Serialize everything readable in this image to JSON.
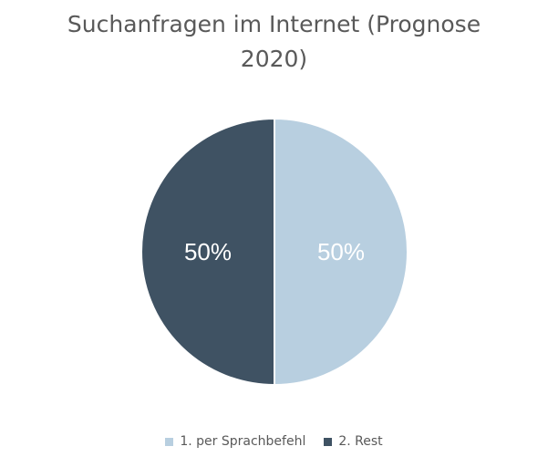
{
  "chart_data": {
    "type": "pie",
    "title_lines": [
      "Suchanfragen im Internet (Prognose",
      "2020)"
    ],
    "series": [
      {
        "name": "",
        "categories": [
          "1. per Sprachbefehl",
          "2. Rest"
        ],
        "values": [
          50,
          50
        ],
        "labels": [
          "50%",
          "50%"
        ],
        "colors": [
          "#b8cfe0",
          "#3f5263"
        ],
        "label_colors": [
          "#ffffff",
          "#ffffff"
        ]
      }
    ],
    "legend": {
      "position": "bottom",
      "entries": [
        {
          "label": "1. per Sprachbefehl",
          "color": "#b8cfe0"
        },
        {
          "label": "2. Rest",
          "color": "#3f5263"
        }
      ]
    }
  }
}
